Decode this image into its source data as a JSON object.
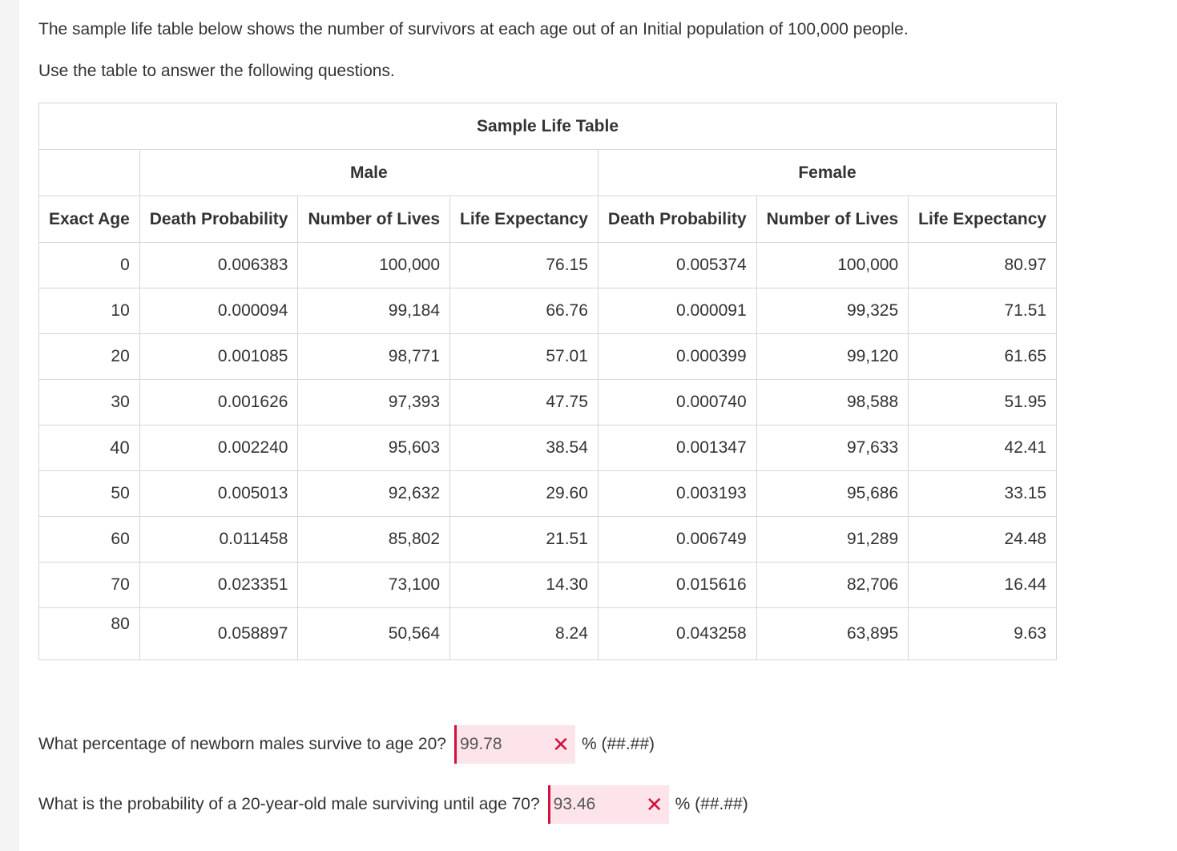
{
  "intro": {
    "line1": "The sample life table below shows the number of survivors at each age out of an Initial population of 100,000 people.",
    "line2": "Use the table to answer the following questions."
  },
  "table": {
    "title": "Sample Life Table",
    "group_male": "Male",
    "group_female": "Female",
    "headers": [
      "Exact Age",
      "Death Probability",
      "Number of Lives",
      "Life Expectancy",
      "Death Probability",
      "Number of Lives",
      "Life Expectancy"
    ],
    "rows": [
      [
        "0",
        "0.006383",
        "100,000",
        "76.15",
        "0.005374",
        "100,000",
        "80.97"
      ],
      [
        "10",
        "0.000094",
        "99,184",
        "66.76",
        "0.000091",
        "99,325",
        "71.51"
      ],
      [
        "20",
        "0.001085",
        "98,771",
        "57.01",
        "0.000399",
        "99,120",
        "61.65"
      ],
      [
        "30",
        "0.001626",
        "97,393",
        "47.75",
        "0.000740",
        "98,588",
        "51.95"
      ],
      [
        "40",
        "0.002240",
        "95,603",
        "38.54",
        "0.001347",
        "97,633",
        "42.41"
      ],
      [
        "50",
        "0.005013",
        "92,632",
        "29.60",
        "0.003193",
        "95,686",
        "33.15"
      ],
      [
        "60",
        "0.011458",
        "85,802",
        "21.51",
        "0.006749",
        "91,289",
        "24.48"
      ],
      [
        "70",
        "0.023351",
        "73,100",
        "14.30",
        "0.015616",
        "82,706",
        "16.44"
      ],
      [
        "80",
        "0.058897",
        "50,564",
        "8.24",
        "0.043258",
        "63,895",
        "9.63"
      ]
    ]
  },
  "questions": [
    {
      "text": "What percentage of newborn males survive to age 20?",
      "answer": "99.78",
      "status_icon": "wrong-x-icon",
      "format": "% (##.##)"
    },
    {
      "text": "What is the probability of a 20-year-old male surviving until age 70?",
      "answer": "93.46",
      "status_icon": "wrong-x-icon",
      "format": "% (##.##)"
    }
  ],
  "colors": {
    "error": "#d0113f",
    "answer_bg": "#fce4ea",
    "border": "#d6d6d6",
    "text": "#333333"
  }
}
